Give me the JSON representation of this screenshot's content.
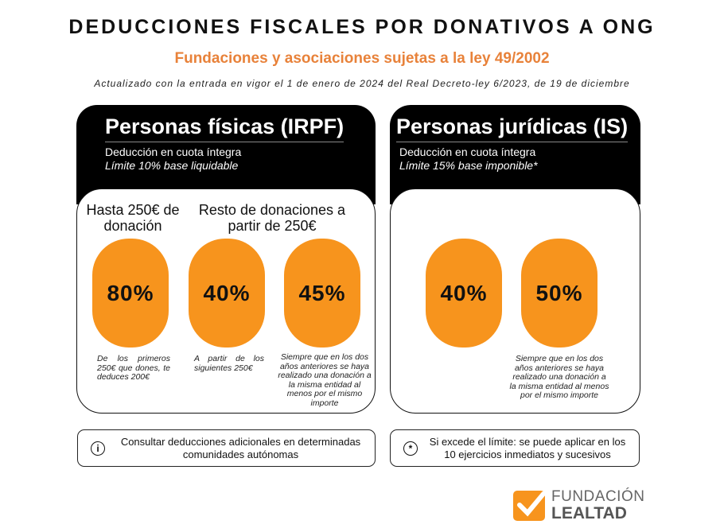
{
  "header": {
    "title": "DEDUCCIONES FISCALES POR DONATIVOS A ONG",
    "subtitle": "Fundaciones y asociaciones sujetas a la ley 49/2002",
    "note": "Actualizado con la entrada en vigor el 1 de enero de 2024 del Real Decreto-ley 6/2023, de 19 de diciembre"
  },
  "irpf": {
    "title": "Personas físicas (IRPF)",
    "line1": "Deducción en cuota íntegra",
    "line2": "Límite 10% base liquidable",
    "group1": "Hasta 250€ de donación",
    "group2": "Resto de donaciones a partir de 250€",
    "rates": [
      {
        "value": "80%",
        "desc": "De los primeros 250€ que dones, te deduces 200€"
      },
      {
        "value": "40%",
        "desc": "A partir de los siguientes 250€"
      },
      {
        "value": "45%",
        "desc": "Siempre que en los dos años anteriores se haya realizado una donación a la misma entidad al menos por el mismo importe"
      }
    ]
  },
  "is": {
    "title": "Personas jurídicas (IS)",
    "line1": "Deducción en cuota íntegra",
    "line2": "Límite 15% base imponible*",
    "rates": [
      {
        "value": "40%"
      },
      {
        "value": "50%",
        "desc": "Siempre que en los dos años anteriores se haya realizado una donación a la misma entidad al menos por el mismo importe"
      }
    ]
  },
  "footer": {
    "info_icon": "info-icon",
    "info": "Consultar deducciones adicionales en determinadas comunidades autónomas",
    "asterisk_icon": "asterisk-icon",
    "asterisk": "Si excede el límite: se puede aplicar en los 10 ejercicios inmediatos y sucesivos"
  },
  "logo": {
    "line1": "FUNDACIÓN",
    "line2": "LEALTAD"
  },
  "colors": {
    "accent": "#f7941d",
    "subtitle": "#e8823a",
    "dark": "#000000"
  }
}
